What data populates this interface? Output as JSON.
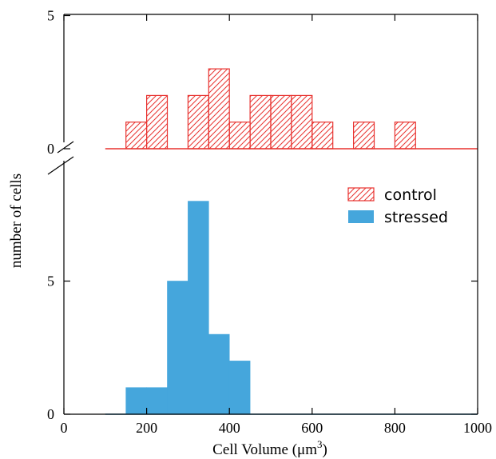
{
  "chart_data": {
    "type": "bar",
    "xlabel": "Cell Volume (μm",
    "xlabel_sup": "3",
    "xlabel_close": ")",
    "ylabel": "number of cells",
    "xlim": [
      0,
      1000
    ],
    "x_ticks": [
      "0",
      "200",
      "400",
      "600",
      "800",
      "1000"
    ],
    "y_ticks_lower": [
      "0",
      "5"
    ],
    "y_ticks_upper": [
      "0",
      "5"
    ],
    "bin_width": 50,
    "broken_axis": true,
    "legend_position": "top-right",
    "series": [
      {
        "name": "control",
        "panel": "upper",
        "style": "hatched",
        "color": "#e8322f",
        "baseline_range": [
          100,
          1000
        ],
        "bins": [
          {
            "x": 150,
            "count": 1
          },
          {
            "x": 200,
            "count": 2
          },
          {
            "x": 300,
            "count": 2
          },
          {
            "x": 350,
            "count": 3
          },
          {
            "x": 400,
            "count": 1
          },
          {
            "x": 450,
            "count": 2
          },
          {
            "x": 500,
            "count": 2
          },
          {
            "x": 550,
            "count": 2
          },
          {
            "x": 600,
            "count": 1
          },
          {
            "x": 700,
            "count": 1
          },
          {
            "x": 800,
            "count": 1
          }
        ]
      },
      {
        "name": "stressed",
        "panel": "lower",
        "style": "solid",
        "color": "#45a6dc",
        "baseline_range": [
          100,
          1000
        ],
        "bins": [
          {
            "x": 150,
            "count": 1
          },
          {
            "x": 200,
            "count": 1
          },
          {
            "x": 250,
            "count": 5
          },
          {
            "x": 300,
            "count": 8
          },
          {
            "x": 350,
            "count": 3
          },
          {
            "x": 400,
            "count": 2
          }
        ]
      }
    ]
  }
}
